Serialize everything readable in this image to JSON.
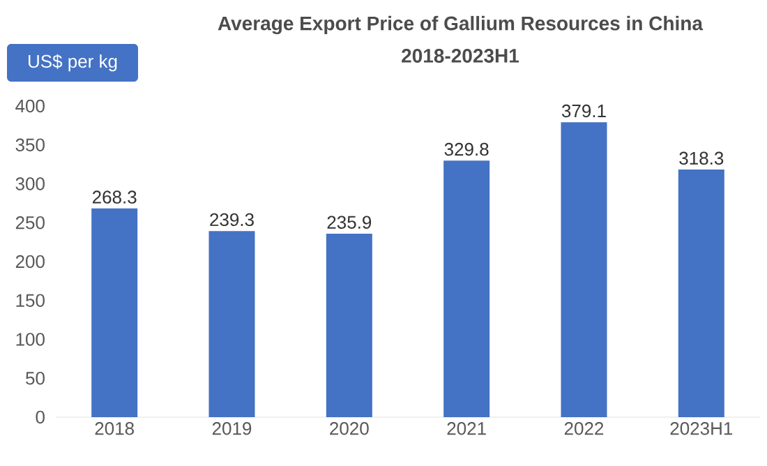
{
  "chart_data": {
    "type": "bar",
    "title": "Average Export Price of Gallium Resources in China",
    "subtitle": "2018-2023H1",
    "ylabel": "US$ per kg",
    "categories": [
      "2018",
      "2019",
      "2020",
      "2021",
      "2022",
      "2023H1"
    ],
    "values": [
      268.3,
      239.3,
      235.9,
      329.8,
      379.1,
      318.3
    ],
    "color": "#4472c4",
    "ylim": [
      0,
      400
    ],
    "yticks": [
      0,
      50,
      100,
      150,
      200,
      250,
      300,
      350,
      400
    ],
    "data_labels": true,
    "grid": false
  }
}
